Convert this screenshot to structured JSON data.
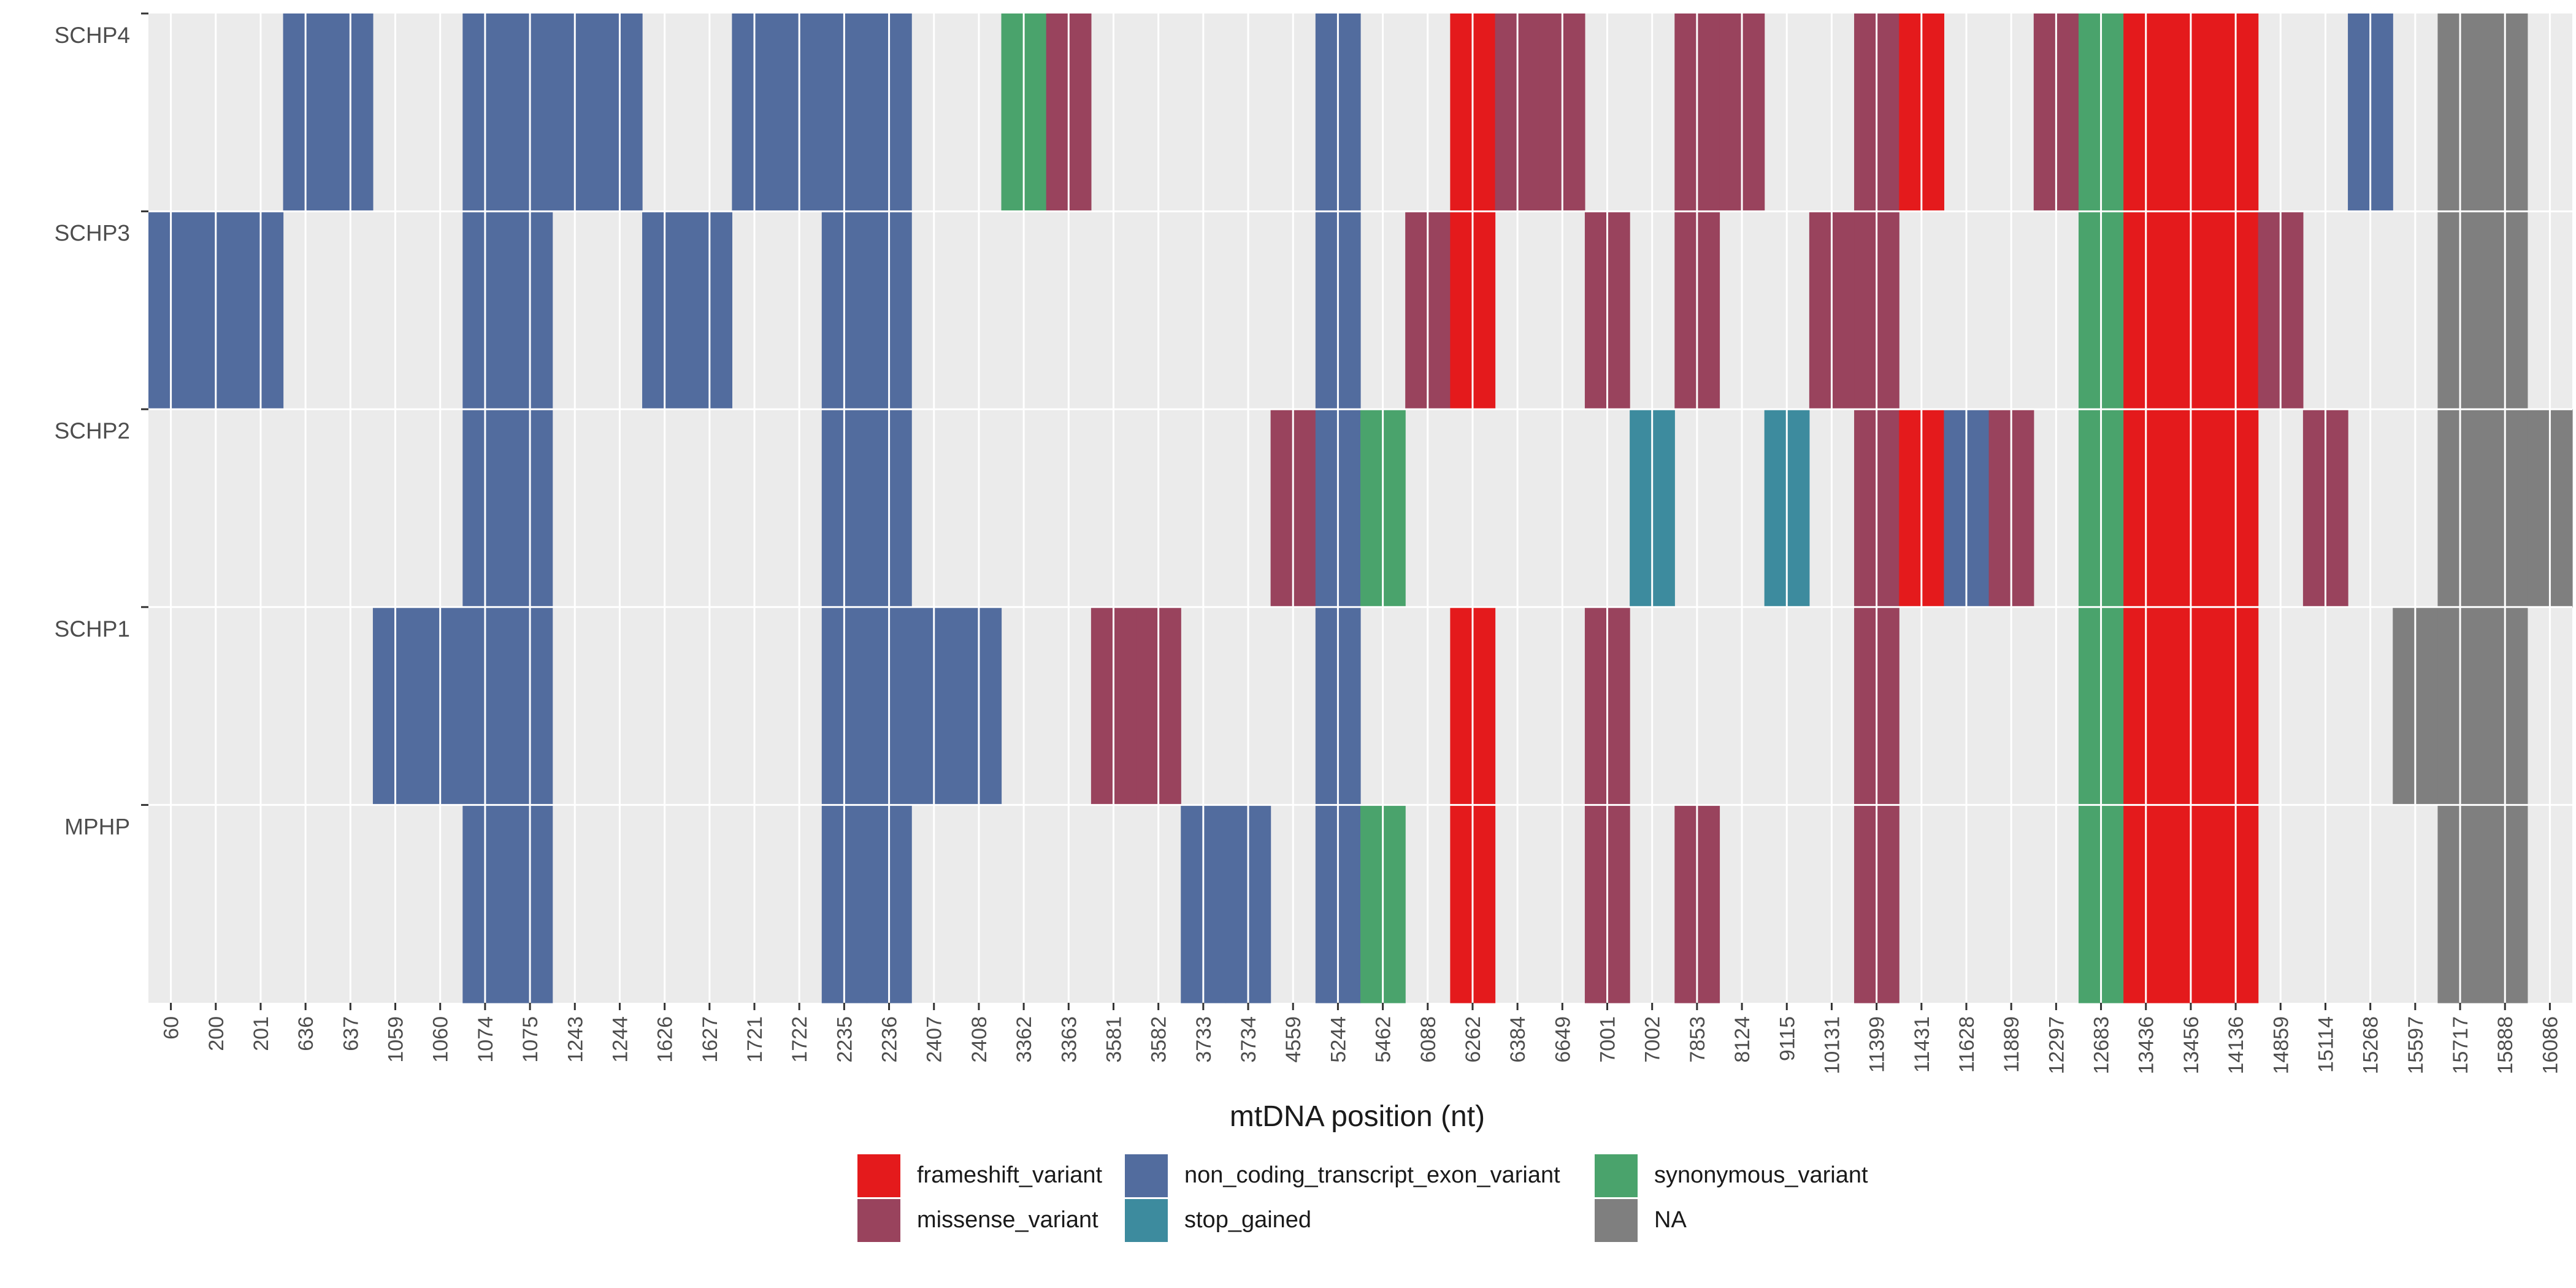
{
  "chart_data": {
    "type": "heatmap",
    "xlabel": "mtDNA position (nt)",
    "x": [
      "60",
      "200",
      "201",
      "636",
      "637",
      "1059",
      "1060",
      "1074",
      "1075",
      "1243",
      "1244",
      "1626",
      "1627",
      "1721",
      "1722",
      "2235",
      "2236",
      "2407",
      "2408",
      "3362",
      "3363",
      "3581",
      "3582",
      "3733",
      "3734",
      "4559",
      "5244",
      "5462",
      "6088",
      "6262",
      "6384",
      "6649",
      "7001",
      "7002",
      "7853",
      "8124",
      "9115",
      "10131",
      "11399",
      "11431",
      "11628",
      "11889",
      "12297",
      "12683",
      "13436",
      "13456",
      "14136",
      "14859",
      "15114",
      "15268",
      "15597",
      "15717",
      "15888",
      "16086"
    ],
    "y": [
      "SCHP4",
      "SCHP3",
      "SCHP2",
      "SCHP1",
      "MPHP"
    ],
    "categories": [
      "frameshift_variant",
      "missense_variant",
      "non_coding_transcript_exon_variant",
      "stop_gained",
      "synonymous_variant",
      "NA"
    ],
    "colors": {
      "frameshift_variant": "#e41a1c",
      "missense_variant": "#99435d",
      "non_coding_transcript_exon_variant": "#526c9e",
      "stop_gained": "#3d8b9e",
      "synonymous_variant": "#4aa36c",
      "NA": "#7f7f7f"
    },
    "panel_background": "#ebebeb",
    "grid": true,
    "legend_position": "bottom",
    "cells": {
      "SCHP4": {
        "636": "N",
        "637": "N",
        "1074": "N",
        "1075": "N",
        "1243": "N",
        "1244": "N",
        "1721": "N",
        "1722": "N",
        "2235": "N",
        "2236": "N",
        "3362": "S",
        "3363": "M",
        "5244": "N",
        "6262": "F",
        "6384": "M",
        "6649": "M",
        "7853": "M",
        "8124": "M",
        "11399": "M",
        "11431": "F",
        "12297": "M",
        "12683": "S",
        "13436": "F",
        "13456": "F",
        "14136": "F",
        "15268": "N",
        "15717": "NA",
        "15888": "NA"
      },
      "SCHP3": {
        "60": "N",
        "200": "N",
        "201": "N",
        "1074": "N",
        "1075": "N",
        "1626": "N",
        "1627": "N",
        "2235": "N",
        "2236": "N",
        "5244": "N",
        "6088": "M",
        "6262": "F",
        "7001": "M",
        "7853": "M",
        "10131": "M",
        "11399": "M",
        "12683": "S",
        "13436": "F",
        "13456": "F",
        "14136": "F",
        "14859": "M",
        "15717": "NA",
        "15888": "NA"
      },
      "SCHP2": {
        "1074": "N",
        "1075": "N",
        "2235": "N",
        "2236": "N",
        "4559": "M",
        "5244": "N",
        "5462": "S",
        "7002": "SG",
        "9115": "SG",
        "11399": "M",
        "11431": "F",
        "11628": "N",
        "11889": "M",
        "12683": "S",
        "13436": "F",
        "13456": "F",
        "14136": "F",
        "15114": "M",
        "15717": "NA",
        "15888": "NA",
        "16086": "NA"
      },
      "SCHP1": {
        "1059": "N",
        "1060": "N",
        "1074": "N",
        "1075": "N",
        "2235": "N",
        "2236": "N",
        "2407": "N",
        "2408": "N",
        "3581": "M",
        "3582": "M",
        "5244": "N",
        "6262": "F",
        "7001": "M",
        "11399": "M",
        "12683": "S",
        "13436": "F",
        "13456": "F",
        "14136": "F",
        "15597": "NA",
        "15717": "NA",
        "15888": "NA"
      },
      "MPHP": {
        "1074": "N",
        "1075": "N",
        "2235": "N",
        "2236": "N",
        "3733": "N",
        "3734": "N",
        "5244": "N",
        "5462": "S",
        "6262": "F",
        "7001": "M",
        "7853": "M",
        "11399": "M",
        "12683": "S",
        "13436": "F",
        "13456": "F",
        "14136": "F",
        "15717": "NA",
        "15888": "NA"
      }
    },
    "code_map": {
      "F": "frameshift_variant",
      "M": "missense_variant",
      "N": "non_coding_transcript_exon_variant",
      "SG": "stop_gained",
      "S": "synonymous_variant",
      "NA": "NA"
    }
  }
}
